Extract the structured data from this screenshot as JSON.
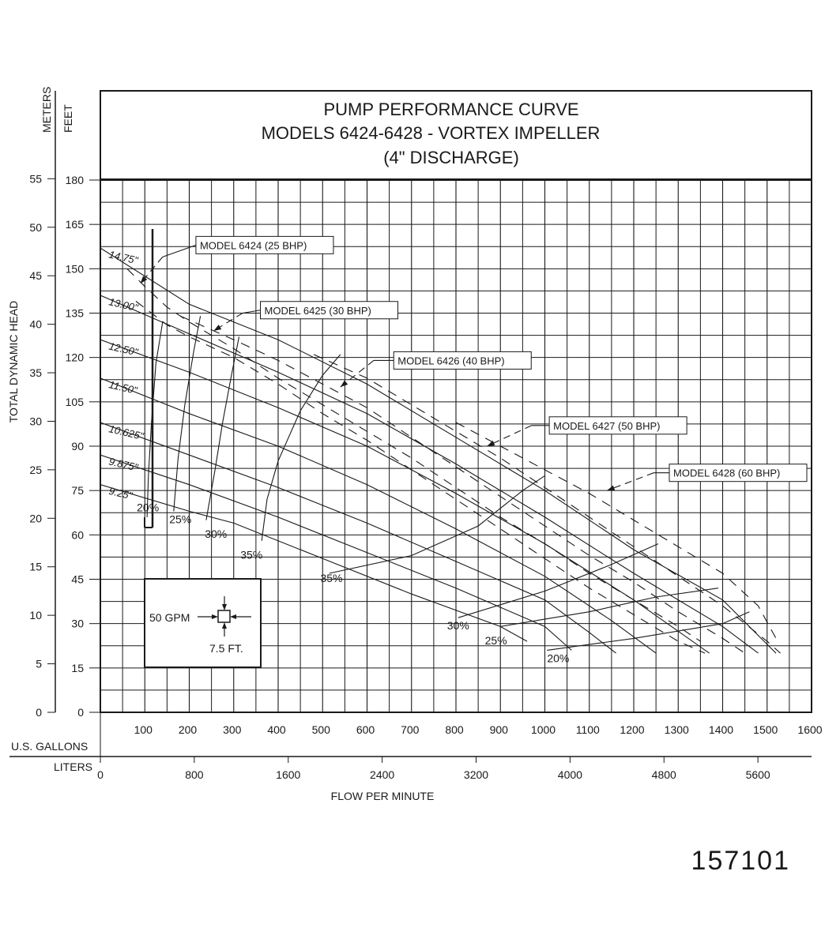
{
  "chart_data": {
    "type": "line",
    "title_lines": [
      "PUMP PERFORMANCE CURVE",
      "MODELS 6424-6428 - VORTEX IMPELLER",
      "(4\" DISCHARGE)"
    ],
    "ylabel": "TOTAL DYNAMIC HEAD",
    "xlabel": "FLOW PER MINUTE",
    "y_units": {
      "meters": "METERS",
      "feet": "FEET"
    },
    "x_units": {
      "gallons": "U.S. GALLONS",
      "liters": "LITERS"
    },
    "xlim": [
      0,
      1600
    ],
    "ylim": [
      0,
      180
    ],
    "x_gpm_ticks": [
      100,
      200,
      300,
      400,
      500,
      600,
      700,
      800,
      900,
      1000,
      1100,
      1200,
      1300,
      1400,
      1500,
      1600
    ],
    "x_liter_ticks": [
      0,
      800,
      1600,
      2400,
      3200,
      4000,
      4800,
      5600
    ],
    "y_feet_ticks": [
      0,
      15,
      30,
      45,
      60,
      75,
      90,
      105,
      120,
      135,
      150,
      165,
      180
    ],
    "y_meter_ticks": [
      0,
      5,
      10,
      15,
      20,
      25,
      30,
      35,
      40,
      45,
      50,
      55
    ],
    "grid": true,
    "impeller_curves": [
      {
        "name": "14.75\"",
        "points": [
          [
            0,
            157
          ],
          [
            200,
            138
          ],
          [
            400,
            126
          ],
          [
            600,
            111
          ],
          [
            800,
            93
          ],
          [
            1000,
            75
          ],
          [
            1200,
            55
          ],
          [
            1400,
            38
          ],
          [
            1520,
            20
          ]
        ]
      },
      {
        "name": "13.00\"",
        "points": [
          [
            0,
            141
          ],
          [
            200,
            128
          ],
          [
            400,
            115
          ],
          [
            600,
            101
          ],
          [
            800,
            84
          ],
          [
            1000,
            66
          ],
          [
            1200,
            47
          ],
          [
            1400,
            29
          ],
          [
            1480,
            20
          ]
        ]
      },
      {
        "name": "12.50\"",
        "points": [
          [
            0,
            126
          ],
          [
            200,
            115
          ],
          [
            400,
            103
          ],
          [
            600,
            90
          ],
          [
            800,
            74
          ],
          [
            1000,
            57
          ],
          [
            1200,
            38
          ],
          [
            1370,
            20
          ]
        ]
      },
      {
        "name": "11.50\"",
        "points": [
          [
            0,
            113
          ],
          [
            200,
            101
          ],
          [
            400,
            90
          ],
          [
            600,
            77
          ],
          [
            800,
            62
          ],
          [
            1000,
            46
          ],
          [
            1150,
            31
          ],
          [
            1250,
            20
          ]
        ]
      },
      {
        "name": "10.625\"",
        "points": [
          [
            0,
            98
          ],
          [
            200,
            87
          ],
          [
            400,
            76
          ],
          [
            600,
            64
          ],
          [
            800,
            51
          ],
          [
            1000,
            38
          ],
          [
            1100,
            27
          ],
          [
            1160,
            20
          ]
        ]
      },
      {
        "name": "9.875\"",
        "points": [
          [
            0,
            87
          ],
          [
            200,
            77
          ],
          [
            400,
            66
          ],
          [
            600,
            54
          ],
          [
            800,
            42
          ],
          [
            1000,
            29
          ],
          [
            1060,
            21
          ]
        ]
      },
      {
        "name": "9.25\"",
        "points": [
          [
            0,
            77
          ],
          [
            200,
            68
          ],
          [
            300,
            64
          ],
          [
            500,
            52
          ],
          [
            700,
            40
          ],
          [
            900,
            29
          ],
          [
            960,
            24
          ]
        ]
      }
    ],
    "motor_curves": [
      {
        "name": "MODEL 6424 (25 BHP)",
        "label_at": [
          215,
          158
        ],
        "arrow_from": [
          140,
          154
        ],
        "arrow_to": [
          90,
          145
        ],
        "points": [
          [
            60,
            150
          ],
          [
            100,
            144
          ],
          [
            150,
            137
          ],
          [
            200,
            132
          ],
          [
            300,
            123
          ],
          [
            400,
            113
          ],
          [
            500,
            104
          ],
          [
            600,
            95
          ],
          [
            700,
            86
          ],
          [
            800,
            76
          ],
          [
            900,
            66
          ],
          [
            1000,
            57
          ],
          [
            1100,
            47
          ],
          [
            1200,
            38
          ],
          [
            1300,
            29
          ],
          [
            1350,
            24
          ]
        ]
      },
      {
        "name": "MODEL 6425 (30 BHP)",
        "label_at": [
          360,
          136
        ],
        "arrow_from": [
          320,
          135
        ],
        "arrow_to": [
          255,
          129
        ],
        "points": [
          [
            80,
            139
          ],
          [
            150,
            131
          ],
          [
            200,
            127
          ],
          [
            300,
            120
          ],
          [
            400,
            111
          ],
          [
            500,
            101
          ],
          [
            600,
            92
          ],
          [
            700,
            82
          ],
          [
            800,
            72
          ],
          [
            900,
            62
          ],
          [
            1000,
            52
          ],
          [
            1100,
            42
          ],
          [
            1200,
            33
          ],
          [
            1300,
            24
          ],
          [
            1360,
            20
          ]
        ]
      },
      {
        "name": "MODEL 6426 (40 BHP)",
        "label_at": [
          660,
          119
        ],
        "arrow_from": [
          615,
          119
        ],
        "arrow_to": [
          540,
          110
        ],
        "points": [
          [
            180,
            134
          ],
          [
            300,
            126
          ],
          [
            400,
            119
          ],
          [
            500,
            111
          ],
          [
            600,
            103
          ],
          [
            700,
            93
          ],
          [
            800,
            83
          ],
          [
            900,
            73
          ],
          [
            1000,
            63
          ],
          [
            1100,
            53
          ],
          [
            1200,
            44
          ],
          [
            1300,
            34
          ],
          [
            1400,
            25
          ],
          [
            1450,
            20
          ]
        ]
      },
      {
        "name": "MODEL 6427 (50 BHP)",
        "label_at": [
          1010,
          97
        ],
        "arrow_from": [
          970,
          97
        ],
        "arrow_to": [
          870,
          90
        ],
        "points": [
          [
            480,
            121
          ],
          [
            600,
            113
          ],
          [
            700,
            104
          ],
          [
            800,
            95
          ],
          [
            900,
            86
          ],
          [
            1000,
            76
          ],
          [
            1100,
            66
          ],
          [
            1200,
            56
          ],
          [
            1300,
            46
          ],
          [
            1400,
            36
          ],
          [
            1500,
            24
          ],
          [
            1530,
            20
          ]
        ]
      },
      {
        "name": "MODEL 6428 (60 BHP)",
        "label_at": [
          1280,
          81
        ],
        "arrow_from": [
          1245,
          81
        ],
        "arrow_to": [
          1140,
          75
        ],
        "points": [
          [
            800,
            98
          ],
          [
            900,
            90
          ],
          [
            1000,
            82
          ],
          [
            1100,
            74
          ],
          [
            1200,
            65
          ],
          [
            1300,
            56
          ],
          [
            1400,
            47
          ],
          [
            1480,
            36
          ],
          [
            1520,
            25
          ]
        ]
      }
    ],
    "efficiency_curves": [
      {
        "name": "20%",
        "label_at": [
          82,
          68
        ],
        "points": [
          [
            105,
            66
          ],
          [
            108,
            80
          ],
          [
            115,
            98
          ],
          [
            125,
            118
          ],
          [
            140,
            132
          ]
        ]
      },
      {
        "name": "25%",
        "label_at": [
          155,
          64
        ],
        "points": [
          [
            165,
            68
          ],
          [
            175,
            86
          ],
          [
            190,
            104
          ],
          [
            210,
            122
          ],
          [
            225,
            134
          ]
        ]
      },
      {
        "name": "30%",
        "label_at": [
          235,
          59
        ],
        "points": [
          [
            238,
            65
          ],
          [
            258,
            82
          ],
          [
            275,
            98
          ],
          [
            295,
            114
          ],
          [
            312,
            127
          ]
        ]
      },
      {
        "name": "35%",
        "label_at": [
          315,
          52
        ],
        "points": [
          [
            363,
            58
          ],
          [
            375,
            72
          ],
          [
            400,
            85
          ],
          [
            450,
            102
          ],
          [
            500,
            114
          ],
          [
            540,
            121
          ]
        ]
      },
      {
        "name": "35%",
        "label_at": [
          495,
          44
        ],
        "points": [
          [
            515,
            47
          ],
          [
            700,
            53
          ],
          [
            850,
            63
          ],
          [
            950,
            75
          ],
          [
            1000,
            80
          ]
        ]
      },
      {
        "name": "30%",
        "label_at": [
          780,
          28
        ],
        "points": [
          [
            805,
            32
          ],
          [
            1000,
            41
          ],
          [
            1150,
            50
          ],
          [
            1255,
            57
          ]
        ]
      },
      {
        "name": "25%",
        "label_at": [
          865,
          23
        ],
        "points": [
          [
            900,
            29
          ],
          [
            1100,
            34
          ],
          [
            1250,
            39
          ],
          [
            1390,
            42
          ]
        ]
      },
      {
        "name": "20%",
        "label_at": [
          1005,
          17
        ],
        "points": [
          [
            1005,
            21
          ],
          [
            1200,
            25
          ],
          [
            1400,
            30
          ],
          [
            1460,
            34
          ]
        ]
      }
    ],
    "legend_box": {
      "flow_label": "50 GPM",
      "head_label": "7.5 FT."
    }
  },
  "drawing_number": "157101"
}
